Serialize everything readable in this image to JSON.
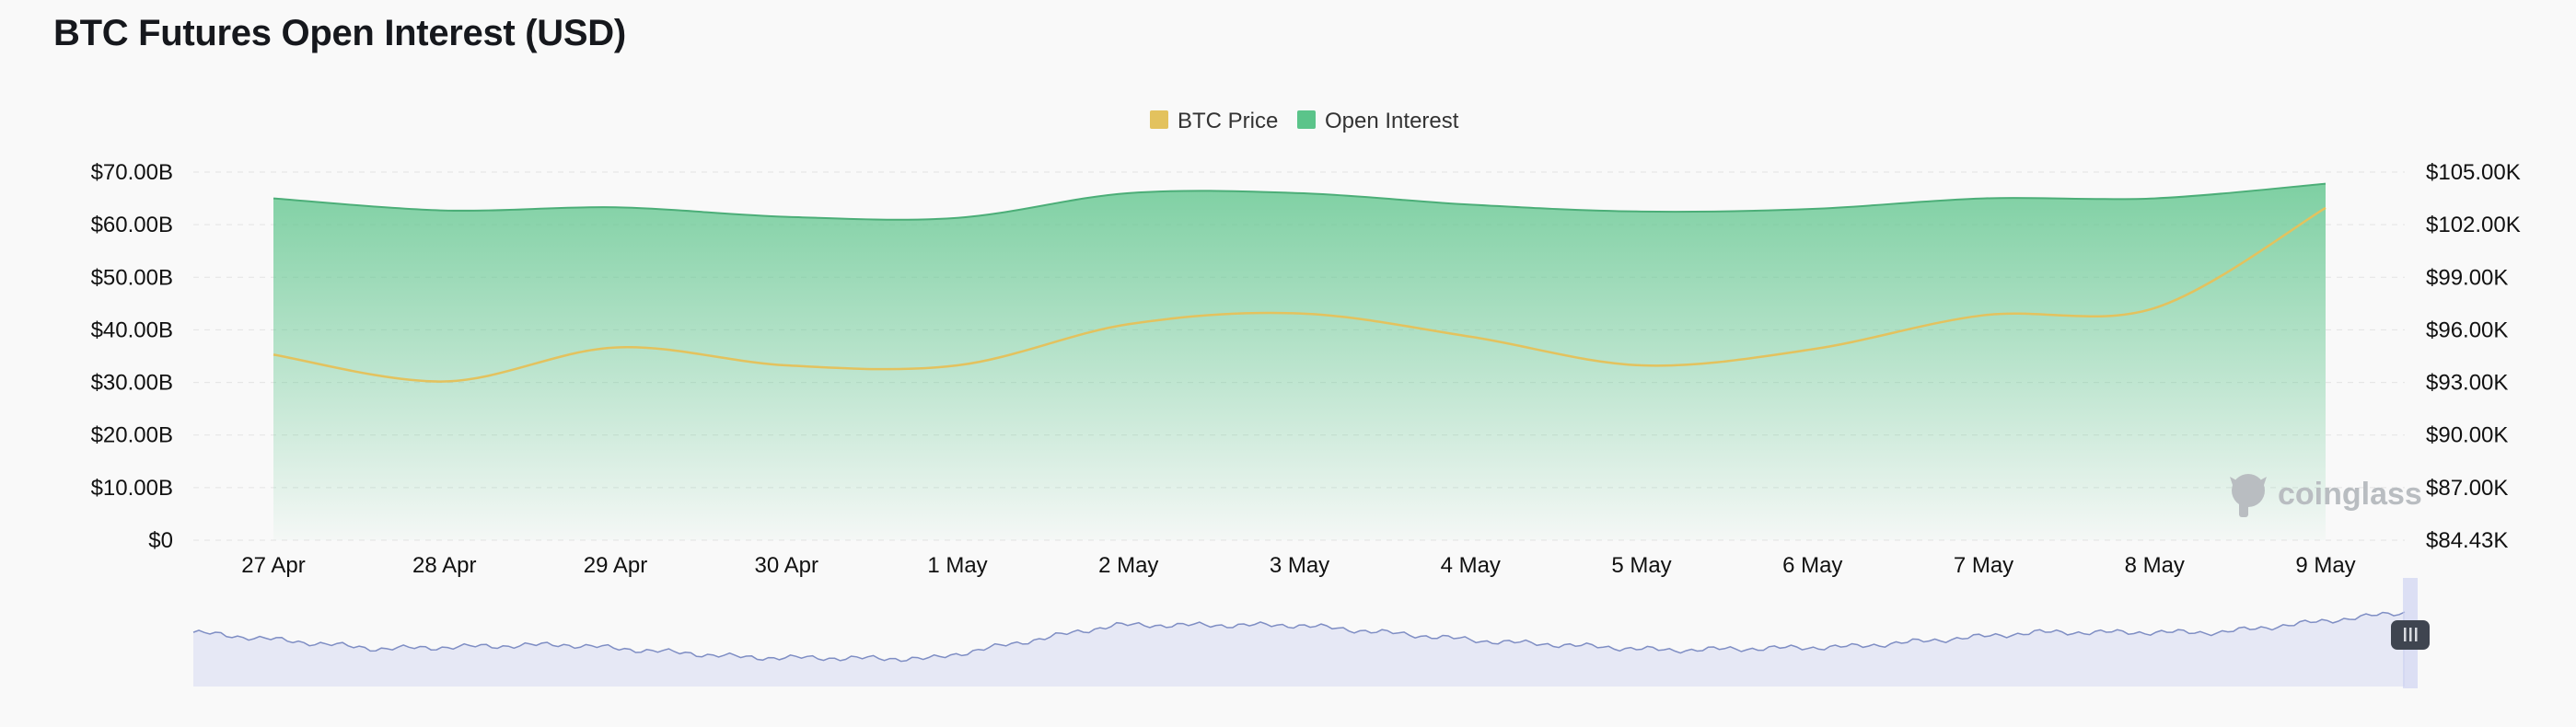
{
  "title": "BTC Futures Open Interest (USD)",
  "watermark": "coinglass",
  "colors": {
    "open_interest": "#5bc48a",
    "open_interest_line": "#4cae78",
    "btc_price": "#e3c25e",
    "navigator_fill": "#e6e8f5",
    "navigator_line": "#7f8ec4",
    "grid": "#e4e4e4"
  },
  "chart_data": {
    "type": "area",
    "title": "BTC Futures Open Interest (USD)",
    "legend": {
      "position": "top-center",
      "entries": [
        "BTC Price",
        "Open Interest"
      ]
    },
    "x_ticks": [
      "27 Apr",
      "28 Apr",
      "29 Apr",
      "30 Apr",
      "1 May",
      "2 May",
      "3 May",
      "4 May",
      "5 May",
      "6 May",
      "7 May",
      "8 May",
      "9 May"
    ],
    "y_left": {
      "ticks": [
        "$0",
        "$10.00B",
        "$20.00B",
        "$30.00B",
        "$40.00B",
        "$50.00B",
        "$60.00B",
        "$70.00B"
      ],
      "range": [
        0,
        70
      ],
      "unit": "B USD"
    },
    "y_right": {
      "ticks": [
        "$84.43K",
        "$87.00K",
        "$90.00K",
        "$93.00K",
        "$96.00K",
        "$99.00K",
        "$102.00K",
        "$105.00K"
      ],
      "range": [
        84.43,
        105.0
      ],
      "unit": "K USD"
    },
    "grid": true,
    "series": [
      {
        "name": "Open Interest",
        "type": "area",
        "axis": "left",
        "x": [
          "27 Apr",
          "28 Apr",
          "29 Apr",
          "30 Apr",
          "1 May",
          "2 May",
          "3 May",
          "4 May",
          "5 May",
          "6 May",
          "7 May",
          "8 May",
          "9 May"
        ],
        "values": [
          65.0,
          62.7,
          63.3,
          61.5,
          61.3,
          66.0,
          66.0,
          63.8,
          62.5,
          63.0,
          65.0,
          65.0,
          67.8
        ]
      },
      {
        "name": "BTC Price",
        "type": "line",
        "axis": "right",
        "x": [
          "27 Apr",
          "28 Apr",
          "29 Apr",
          "30 Apr",
          "1 May",
          "2 May",
          "3 May",
          "4 May",
          "5 May",
          "6 May",
          "7 May",
          "8 May",
          "9 May"
        ],
        "values": [
          94.8,
          93.3,
          95.2,
          94.2,
          94.2,
          96.5,
          97.1,
          95.8,
          94.2,
          95.1,
          97.0,
          97.4,
          103.0
        ]
      }
    ]
  }
}
